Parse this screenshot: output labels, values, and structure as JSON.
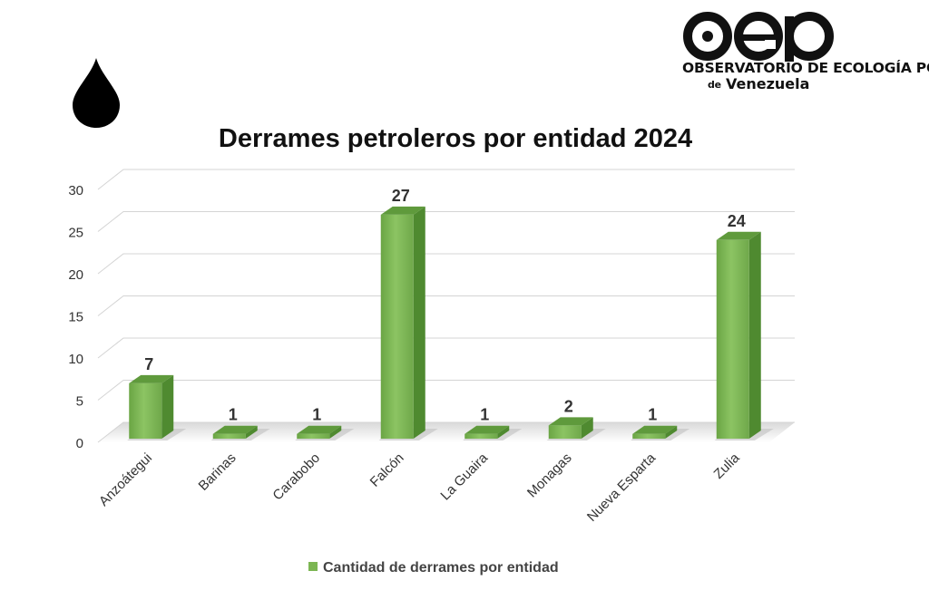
{
  "logo": {
    "text": "oep",
    "line1": "OBSERVATORIO DE ECOLOGÍA POLÍTICA",
    "line2_prefix": "de",
    "line2": "Venezuela",
    "icon": "oil-drop-icon"
  },
  "chart_data": {
    "type": "bar",
    "title": "Derrames petroleros por entidad 2024",
    "xlabel": "",
    "ylabel": "",
    "categories": [
      "Anzoátegui",
      "Barinas",
      "Carabobo",
      "Falcón",
      "La Guaira",
      "Monagas",
      "Nueva Esparta",
      "Zulia"
    ],
    "series": [
      {
        "name": "Cantidad de derrames por entidad",
        "values": [
          7,
          1,
          1,
          27,
          1,
          2,
          1,
          24
        ],
        "color": "#7cb653"
      }
    ],
    "ylim": [
      0,
      30
    ],
    "yticks": [
      0,
      5,
      10,
      15,
      20,
      25,
      30
    ],
    "grid": true,
    "legend": "bottom",
    "style": "3d-column"
  }
}
